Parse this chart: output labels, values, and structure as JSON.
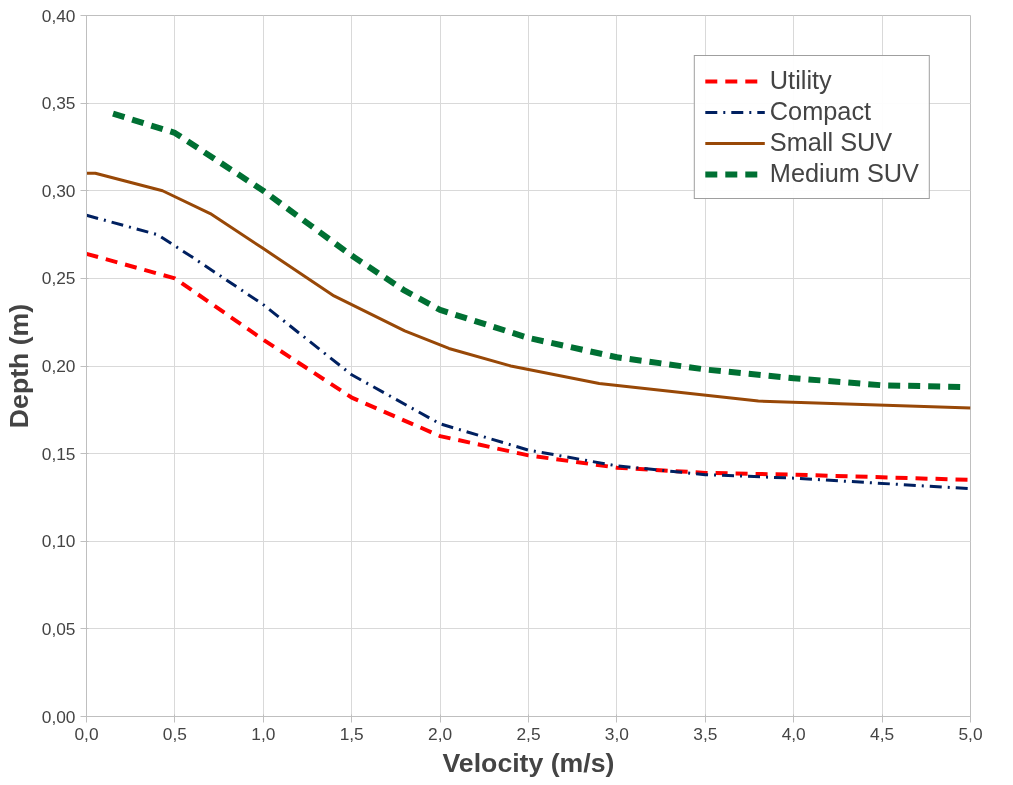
{
  "chart_data": {
    "type": "line",
    "xlabel": "Velocity (m/s)",
    "ylabel": "Depth (m)",
    "xlim": [
      0,
      5
    ],
    "ylim": [
      0,
      0.4
    ],
    "xticks": [
      {
        "value": 0,
        "label": "0,0"
      },
      {
        "value": 0.5,
        "label": "0,5"
      },
      {
        "value": 1,
        "label": "1,0"
      },
      {
        "value": 1.5,
        "label": "1,5"
      },
      {
        "value": 2,
        "label": "2,0"
      },
      {
        "value": 2.5,
        "label": "2,5"
      },
      {
        "value": 3,
        "label": "3,0"
      },
      {
        "value": 3.5,
        "label": "3,5"
      },
      {
        "value": 4,
        "label": "4,0"
      },
      {
        "value": 4.5,
        "label": "4,5"
      },
      {
        "value": 5,
        "label": "5,0"
      }
    ],
    "yticks": [
      {
        "value": 0,
        "label": "0,00"
      },
      {
        "value": 0.05,
        "label": "0,05"
      },
      {
        "value": 0.1,
        "label": "0,10"
      },
      {
        "value": 0.15,
        "label": "0,15"
      },
      {
        "value": 0.2,
        "label": "0,20"
      },
      {
        "value": 0.25,
        "label": "0,25"
      },
      {
        "value": 0.3,
        "label": "0,30"
      },
      {
        "value": 0.35,
        "label": "0,35"
      },
      {
        "value": 0.4,
        "label": "0,40"
      }
    ],
    "grid": true,
    "legend": "top right",
    "marker": "none",
    "series": [
      {
        "name": "Utility",
        "color": "#ff0000",
        "line_style": "dashed",
        "x": [
          0,
          0.5,
          1.0,
          1.5,
          2.0,
          2.5,
          3.0,
          3.5,
          4.0,
          5.0
        ],
        "values": [
          0.264,
          0.25,
          0.215,
          0.182,
          0.16,
          0.149,
          0.142,
          0.139,
          0.138,
          0.135
        ]
      },
      {
        "name": "Compact",
        "color": "#002060",
        "line_style": "dashdot",
        "x": [
          0,
          0.4,
          0.6,
          1.0,
          1.5,
          2.0,
          2.5,
          3.0,
          3.5,
          4.0,
          5.0
        ],
        "values": [
          0.286,
          0.275,
          0.262,
          0.235,
          0.195,
          0.167,
          0.152,
          0.143,
          0.138,
          0.136,
          0.13
        ]
      },
      {
        "name": "Small SUV",
        "color": "#984807",
        "line_style": "solid",
        "x": [
          0,
          0.05,
          0.43,
          0.7,
          1.0,
          1.4,
          1.6,
          1.8,
          2.05,
          2.4,
          2.9,
          3.8,
          5.0
        ],
        "values": [
          0.31,
          0.31,
          0.3,
          0.287,
          0.267,
          0.24,
          0.23,
          0.22,
          0.21,
          0.2,
          0.19,
          0.18,
          0.176
        ]
      },
      {
        "name": "Medium SUV",
        "color": "#007033",
        "line_style": "dashed",
        "x": [
          0.15,
          0.5,
          1.0,
          1.5,
          1.8,
          2.0,
          2.5,
          3.0,
          3.5,
          4.0,
          4.5,
          4.95
        ],
        "values": [
          0.344,
          0.333,
          0.3,
          0.263,
          0.243,
          0.232,
          0.216,
          0.205,
          0.198,
          0.193,
          0.189,
          0.188
        ]
      }
    ]
  }
}
